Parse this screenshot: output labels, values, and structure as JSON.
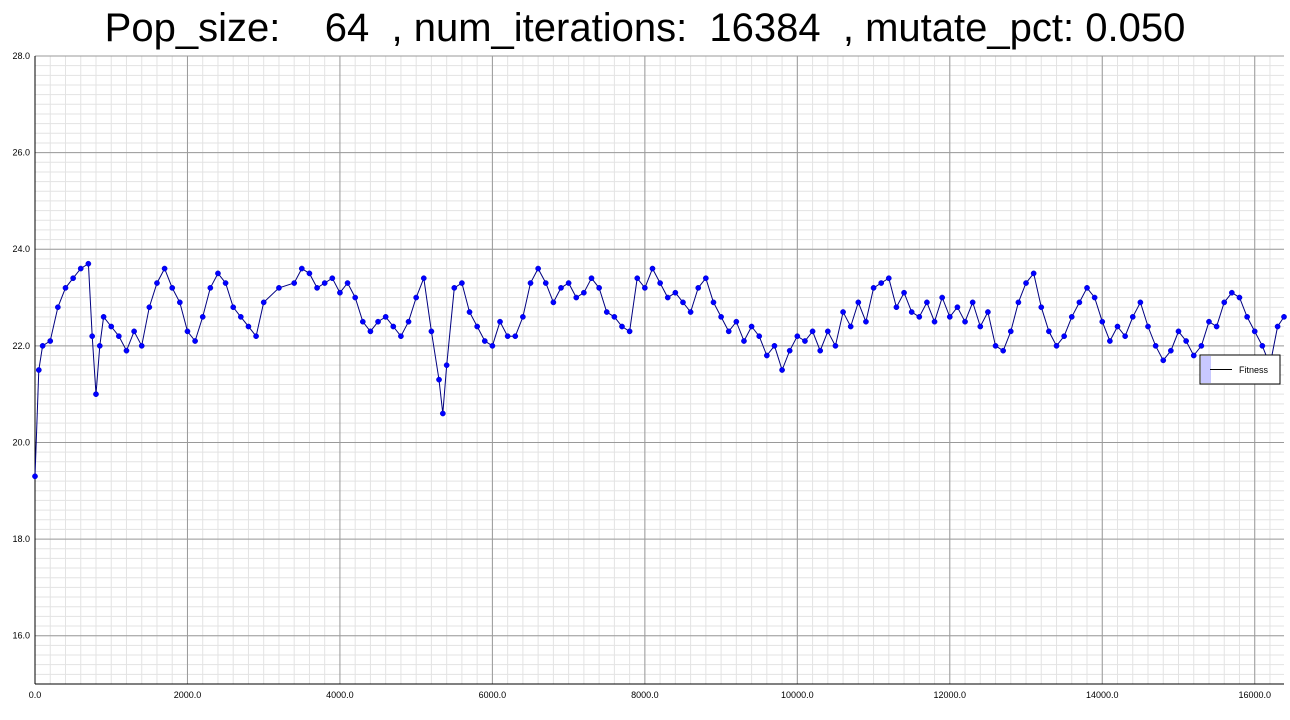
{
  "chart_data": {
    "type": "line",
    "title": "Pop_size:    64  , num_iterations:  16384  , mutate_pct: 0.050",
    "xlabel": "",
    "ylabel": "",
    "xlim": [
      0,
      16384
    ],
    "ylim": [
      15,
      28
    ],
    "x_ticks": [
      0,
      2000,
      4000,
      6000,
      8000,
      10000,
      12000,
      14000,
      16000
    ],
    "x_tick_labels": [
      "0.0",
      "2000.0",
      "4000.0",
      "6000.0",
      "8000.0",
      "10000.0",
      "12000.0",
      "14000.0",
      "16000.0"
    ],
    "y_ticks": [
      16,
      18,
      20,
      22,
      24,
      26,
      28
    ],
    "y_tick_labels": [
      "16.0",
      "18.0",
      "20.0",
      "22.0",
      "24.0",
      "26.0",
      "28.0"
    ],
    "grid": true,
    "legend_position": "right",
    "series": [
      {
        "name": "Fitness",
        "color": "#0000ff",
        "marker": "circle",
        "x": [
          0,
          50,
          100,
          200,
          300,
          400,
          500,
          600,
          700,
          750,
          800,
          850,
          900,
          1000,
          1100,
          1200,
          1300,
          1400,
          1500,
          1600,
          1700,
          1800,
          1900,
          2000,
          2100,
          2200,
          2300,
          2400,
          2500,
          2600,
          2700,
          2800,
          2900,
          3000,
          3200,
          3400,
          3500,
          3600,
          3700,
          3800,
          3900,
          4000,
          4100,
          4200,
          4300,
          4400,
          4500,
          4600,
          4700,
          4800,
          4900,
          5000,
          5100,
          5200,
          5300,
          5350,
          5400,
          5500,
          5600,
          5700,
          5800,
          5900,
          6000,
          6100,
          6200,
          6300,
          6400,
          6500,
          6600,
          6700,
          6800,
          6900,
          7000,
          7100,
          7200,
          7300,
          7400,
          7500,
          7600,
          7700,
          7800,
          7900,
          8000,
          8100,
          8200,
          8300,
          8400,
          8500,
          8600,
          8700,
          8800,
          8900,
          9000,
          9100,
          9200,
          9300,
          9400,
          9500,
          9600,
          9700,
          9800,
          9900,
          10000,
          10100,
          10200,
          10300,
          10400,
          10500,
          10600,
          10700,
          10800,
          10900,
          11000,
          11100,
          11200,
          11300,
          11400,
          11500,
          11600,
          11700,
          11800,
          11900,
          12000,
          12100,
          12200,
          12300,
          12400,
          12500,
          12600,
          12700,
          12800,
          12900,
          13000,
          13100,
          13200,
          13300,
          13400,
          13500,
          13600,
          13700,
          13800,
          13900,
          14000,
          14100,
          14200,
          14300,
          14400,
          14500,
          14600,
          14700,
          14800,
          14900,
          15000,
          15100,
          15200,
          15300,
          15400,
          15500,
          15600,
          15700,
          15800,
          15900,
          16000,
          16100,
          16200,
          16300,
          16384
        ],
        "y": [
          19.3,
          21.5,
          22.0,
          22.1,
          22.8,
          23.2,
          23.4,
          23.6,
          23.7,
          22.2,
          21.0,
          22.0,
          22.6,
          22.4,
          22.2,
          21.9,
          22.3,
          22.0,
          22.8,
          23.3,
          23.6,
          23.2,
          22.9,
          22.3,
          22.1,
          22.6,
          23.2,
          23.5,
          23.3,
          22.8,
          22.6,
          22.4,
          22.2,
          22.9,
          23.2,
          23.3,
          23.6,
          23.5,
          23.2,
          23.3,
          23.4,
          23.1,
          23.3,
          23.0,
          22.5,
          22.3,
          22.5,
          22.6,
          22.4,
          22.2,
          22.5,
          23.0,
          23.4,
          22.3,
          21.3,
          20.6,
          21.6,
          23.2,
          23.3,
          22.7,
          22.4,
          22.1,
          22.0,
          22.5,
          22.2,
          22.2,
          22.6,
          23.3,
          23.6,
          23.3,
          22.9,
          23.2,
          23.3,
          23.0,
          23.1,
          23.4,
          23.2,
          22.7,
          22.6,
          22.4,
          22.3,
          23.4,
          23.2,
          23.6,
          23.3,
          23.0,
          23.1,
          22.9,
          22.7,
          23.2,
          23.4,
          22.9,
          22.6,
          22.3,
          22.5,
          22.1,
          22.4,
          22.2,
          21.8,
          22.0,
          21.5,
          21.9,
          22.2,
          22.1,
          22.3,
          21.9,
          22.3,
          22.0,
          22.7,
          22.4,
          22.9,
          22.5,
          23.2,
          23.3,
          23.4,
          22.8,
          23.1,
          22.7,
          22.6,
          22.9,
          22.5,
          23.0,
          22.6,
          22.8,
          22.5,
          22.9,
          22.4,
          22.7,
          22.0,
          21.9,
          22.3,
          22.9,
          23.3,
          23.5,
          22.8,
          22.3,
          22.0,
          22.2,
          22.6,
          22.9,
          23.2,
          23.0,
          22.5,
          22.1,
          22.4,
          22.2,
          22.6,
          22.9,
          22.4,
          22.0,
          21.7,
          21.9,
          22.3,
          22.1,
          21.8,
          22.0,
          22.5,
          22.4,
          22.9,
          23.1,
          23.0,
          22.6,
          22.3,
          22.0,
          21.6,
          22.4,
          22.6
        ]
      }
    ]
  }
}
